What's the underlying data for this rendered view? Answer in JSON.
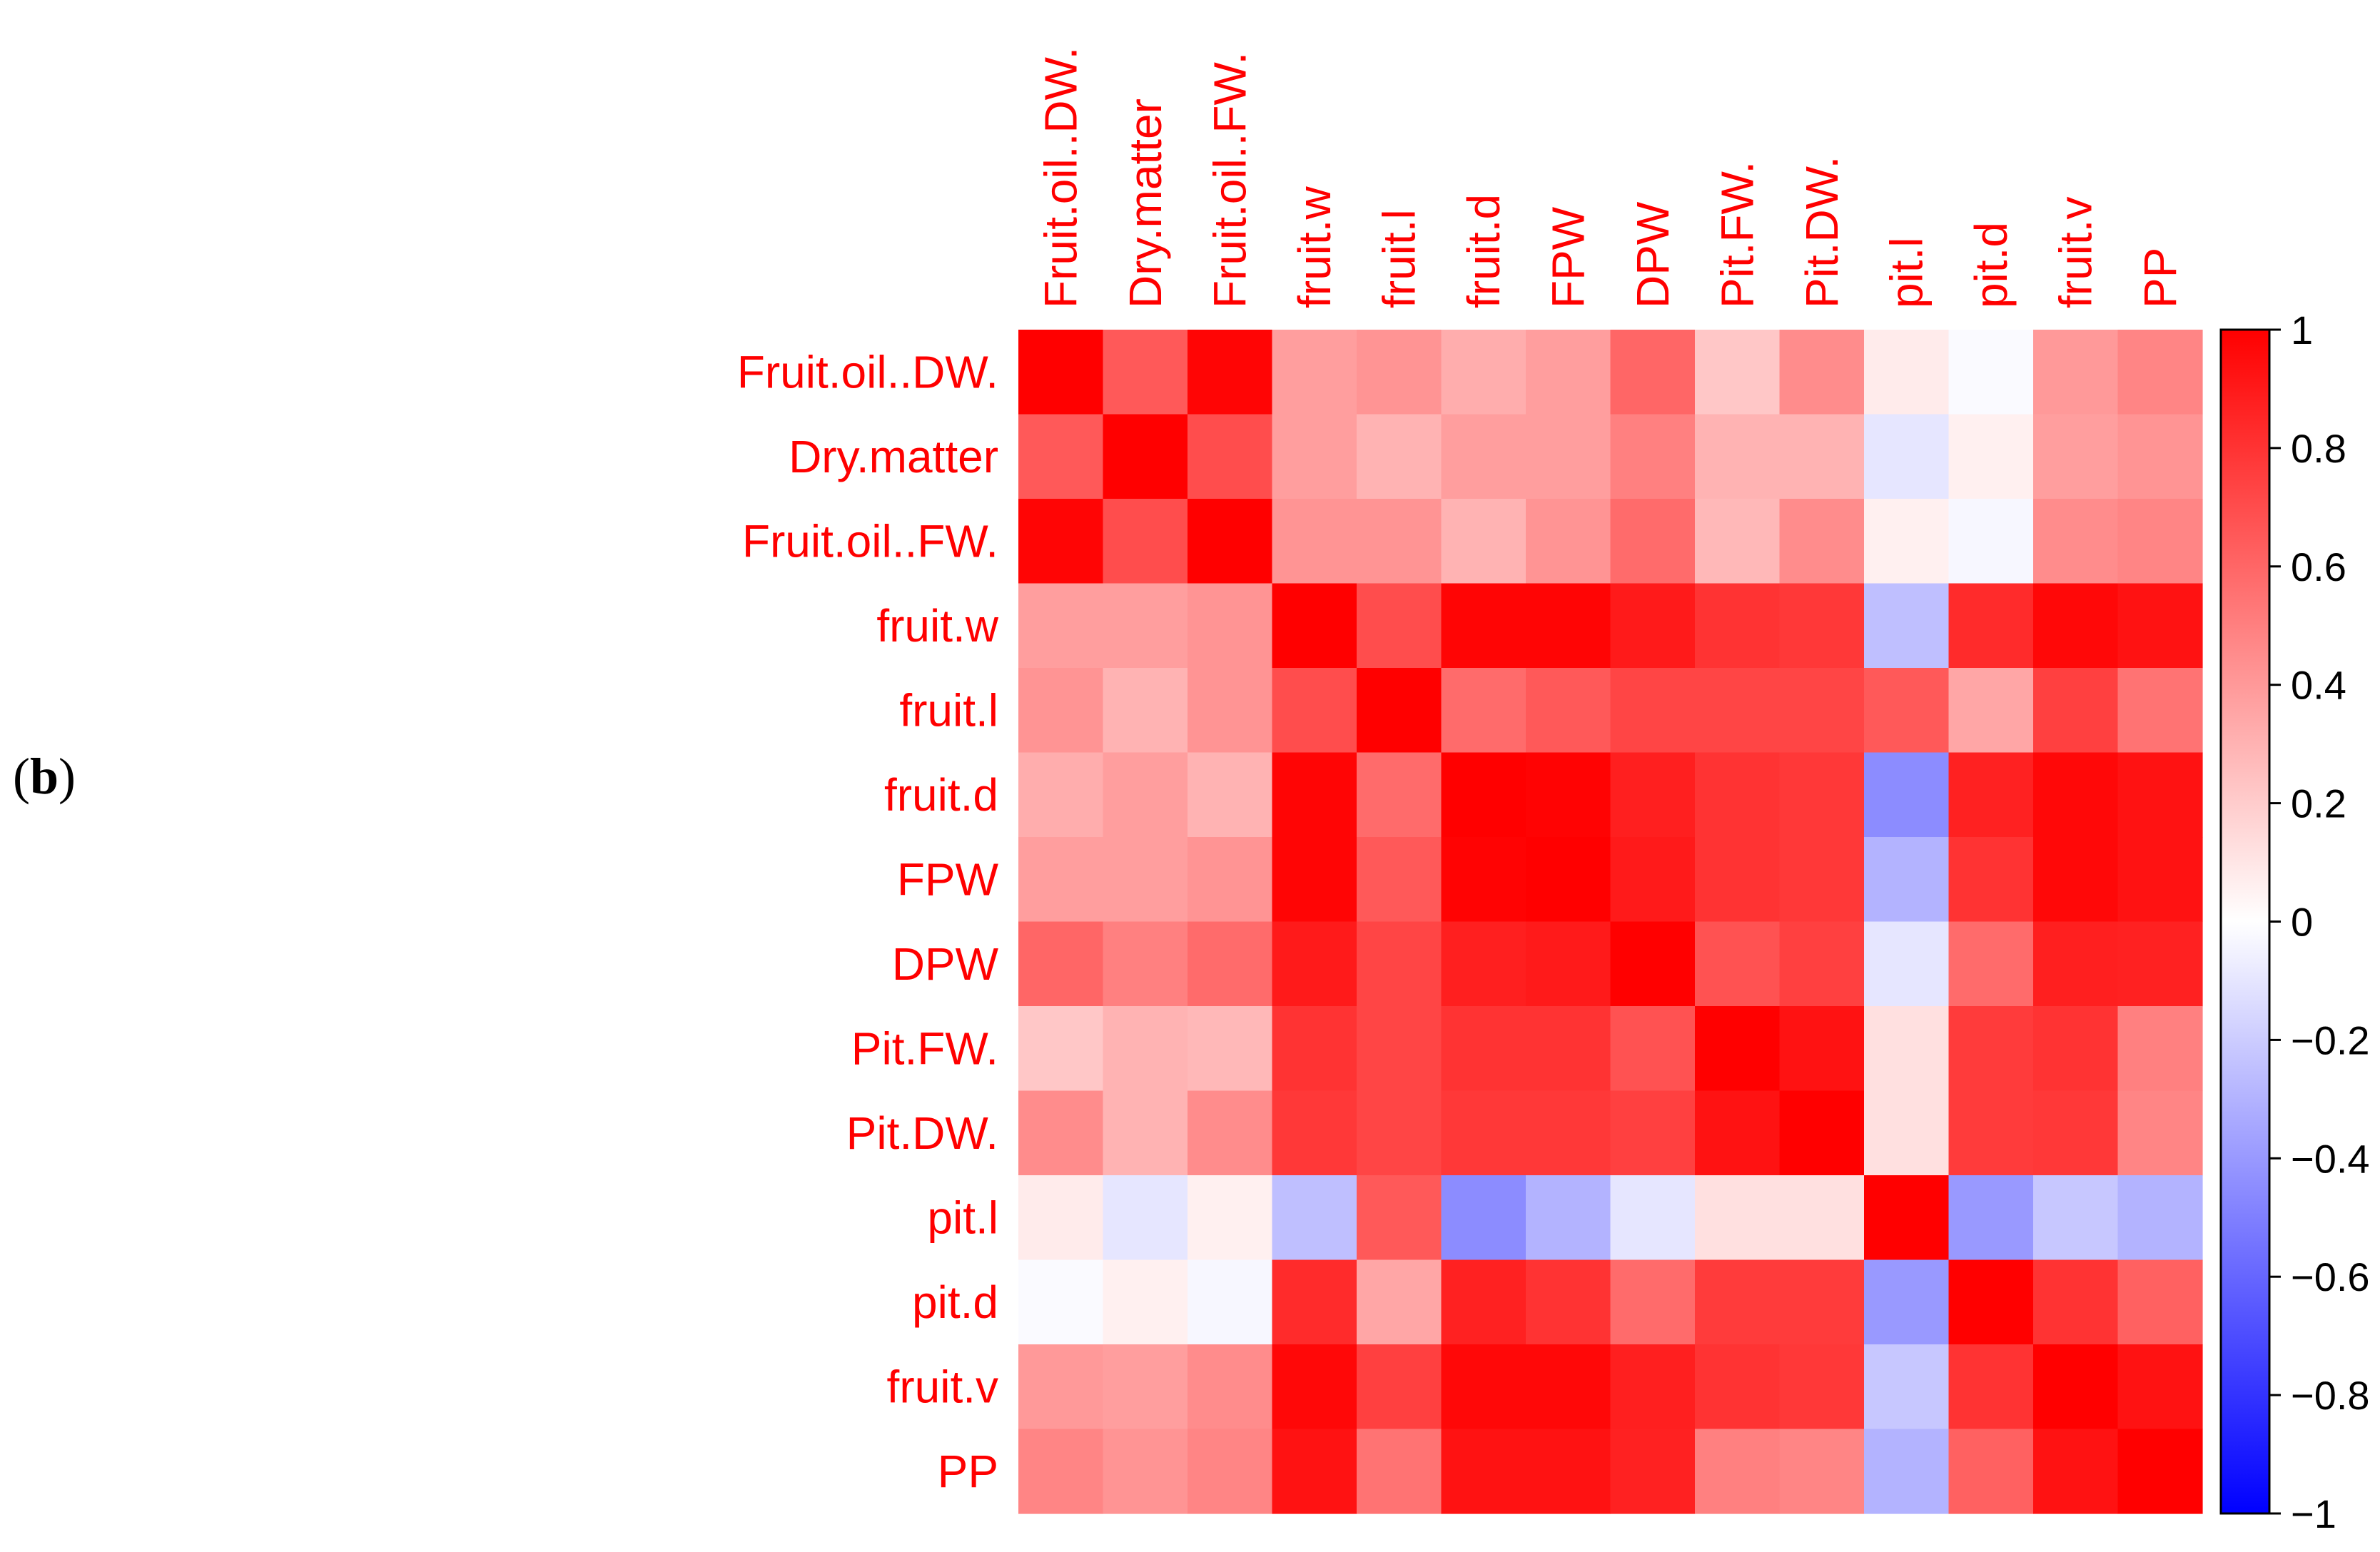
{
  "panel_label": {
    "open": "(",
    "letter": "b",
    "close": ")"
  },
  "label_color": "#ff0000",
  "colorbar": {
    "ticks": [
      "1",
      "0.8",
      "0.6",
      "0.4",
      "0.2",
      "0",
      "−0.2",
      "−0.4",
      "−0.6",
      "−0.8",
      "−1"
    ],
    "tick_values": [
      1,
      0.8,
      0.6,
      0.4,
      0.2,
      0,
      -0.2,
      -0.4,
      -0.6,
      -0.8,
      -1
    ],
    "range": [
      -1,
      1
    ],
    "low_color": "#0000ff",
    "mid_color": "#ffffff",
    "high_color": "#ff0000"
  },
  "chart_data": {
    "type": "heatmap",
    "title": "",
    "variables": [
      "Fruit.oil..DW.",
      "Dry.matter",
      "Fruit.oil..FW.",
      "fruit.w",
      "fruit.l",
      "fruit.d",
      "FPW",
      "DPW",
      "Pit.FW.",
      "Pit.DW.",
      "pit.l",
      "pit.d",
      "fruit.v",
      "PP"
    ],
    "value_range": [
      -1,
      1
    ],
    "matrix": [
      [
        1.0,
        0.65,
        0.98,
        0.38,
        0.42,
        0.32,
        0.38,
        0.6,
        0.22,
        0.45,
        0.08,
        -0.02,
        0.4,
        0.48
      ],
      [
        0.65,
        1.0,
        0.7,
        0.38,
        0.3,
        0.38,
        0.38,
        0.5,
        0.3,
        0.3,
        -0.1,
        0.06,
        0.38,
        0.42
      ],
      [
        0.98,
        0.7,
        1.0,
        0.42,
        0.42,
        0.3,
        0.42,
        0.58,
        0.28,
        0.45,
        0.06,
        -0.03,
        0.45,
        0.48
      ],
      [
        0.38,
        0.38,
        0.42,
        1.0,
        0.7,
        0.98,
        0.98,
        0.9,
        0.8,
        0.78,
        -0.25,
        0.83,
        0.97,
        0.93
      ],
      [
        0.42,
        0.3,
        0.42,
        0.7,
        1.0,
        0.58,
        0.65,
        0.73,
        0.73,
        0.73,
        0.65,
        0.35,
        0.75,
        0.55
      ],
      [
        0.32,
        0.38,
        0.3,
        0.98,
        0.58,
        1.0,
        0.99,
        0.88,
        0.8,
        0.78,
        -0.45,
        0.87,
        0.97,
        0.93
      ],
      [
        0.38,
        0.38,
        0.42,
        0.98,
        0.65,
        0.99,
        1.0,
        0.9,
        0.8,
        0.78,
        -0.3,
        0.8,
        0.97,
        0.93
      ],
      [
        0.6,
        0.5,
        0.58,
        0.9,
        0.73,
        0.88,
        0.9,
        1.0,
        0.68,
        0.75,
        -0.1,
        0.58,
        0.88,
        0.87
      ],
      [
        0.22,
        0.3,
        0.28,
        0.8,
        0.73,
        0.8,
        0.8,
        0.68,
        1.0,
        0.93,
        0.12,
        0.77,
        0.8,
        0.5
      ],
      [
        0.45,
        0.3,
        0.45,
        0.78,
        0.73,
        0.78,
        0.78,
        0.75,
        0.93,
        1.0,
        0.12,
        0.77,
        0.78,
        0.48
      ],
      [
        0.08,
        -0.1,
        0.06,
        -0.25,
        0.65,
        -0.45,
        -0.3,
        -0.1,
        0.12,
        0.12,
        1.0,
        -0.4,
        -0.22,
        -0.3
      ],
      [
        -0.02,
        0.06,
        -0.03,
        0.83,
        0.35,
        0.87,
        0.8,
        0.58,
        0.77,
        0.77,
        -0.4,
        1.0,
        0.8,
        0.62
      ],
      [
        0.4,
        0.38,
        0.45,
        0.97,
        0.75,
        0.97,
        0.97,
        0.88,
        0.8,
        0.78,
        -0.22,
        0.8,
        1.0,
        0.93
      ],
      [
        0.48,
        0.42,
        0.48,
        0.93,
        0.55,
        0.93,
        0.93,
        0.87,
        0.5,
        0.48,
        -0.3,
        0.62,
        0.93,
        1.0
      ]
    ]
  }
}
